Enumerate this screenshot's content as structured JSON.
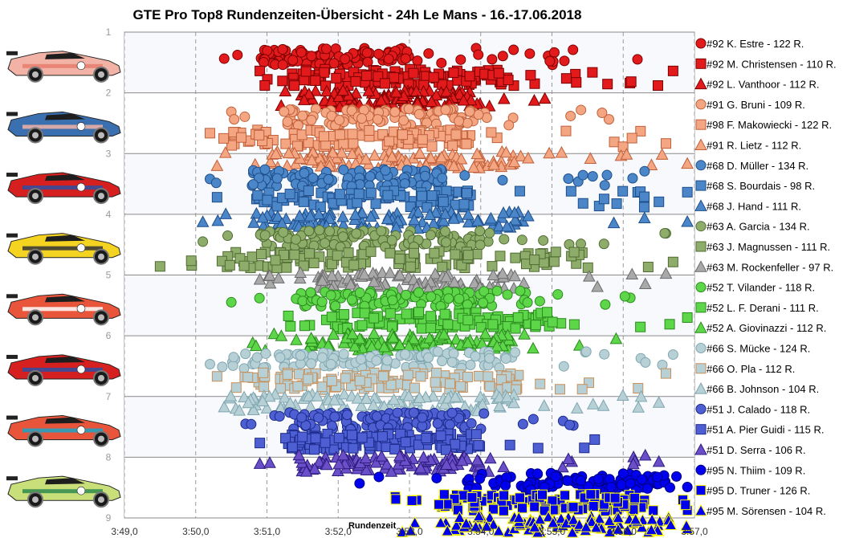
{
  "chart_data": {
    "type": "scatter",
    "title": "GTE Pro Top8 Rundenzeiten-Übersicht  - 24h Le Mans  - 16.-17.06.2018",
    "xlabel": "Rundenzeit",
    "ylabel": "",
    "x_unit": "seconds (lap time)",
    "xlim": [
      229,
      237
    ],
    "ylim": [
      1,
      9
    ],
    "x_ticks": [
      "3:49,0",
      "3:50,0",
      "3:51,0",
      "3:52,0",
      "3:53,0",
      "3:54,0",
      "3:55,0",
      "3:56,0",
      "3:57,0"
    ],
    "y_ticks": [
      "1",
      "2",
      "3",
      "4",
      "5",
      "6",
      "7",
      "8",
      "9"
    ],
    "grid": "x dashed vertical, y solid horizontal",
    "legend_position": "right",
    "cars": [
      {
        "number": "#92",
        "livery": "#f2b3a6",
        "accent": "#e77d6f"
      },
      {
        "number": "#91",
        "livery": "#3a6fb0",
        "accent": "#f2b3a6"
      },
      {
        "number": "#68",
        "livery": "#d62020",
        "accent": "#2b4fa3"
      },
      {
        "number": "#63",
        "livery": "#f5d321",
        "accent": "#333333"
      },
      {
        "number": "#52",
        "livery": "#e8553a",
        "accent": "#ffffff"
      },
      {
        "number": "#66",
        "livery": "#d62020",
        "accent": "#2b4fa3"
      },
      {
        "number": "#51",
        "livery": "#e8553a",
        "accent": "#1aa6c9"
      },
      {
        "number": "#95",
        "livery": "#c9e07a",
        "accent": "#2f8a4d"
      }
    ],
    "series": [
      {
        "name": "#92 K. Estre - 122 R.",
        "y": 1.4,
        "marker": "circle",
        "color": "#e31a1c",
        "stroke": "#7a0000",
        "xmin": 230.4,
        "xmax": 236.2,
        "core": [
          230.9,
          233.0
        ],
        "n": 122
      },
      {
        "name": "#92 M. Christensen - 110 R.",
        "y": 1.75,
        "marker": "square",
        "color": "#e31a1c",
        "stroke": "#7a0000",
        "xmin": 230.9,
        "xmax": 236.7,
        "core": [
          231.3,
          234.5
        ],
        "n": 110
      },
      {
        "name": "#92 L. Vanthoor - 112 R.",
        "y": 2.1,
        "marker": "triangle",
        "color": "#e31a1c",
        "stroke": "#7a0000",
        "xmin": 231.2,
        "xmax": 234.9,
        "core": [
          231.5,
          234.0
        ],
        "n": 112
      },
      {
        "name": "#91 G. Bruni - 109 R.",
        "y": 2.4,
        "marker": "circle",
        "color": "#f4a582",
        "stroke": "#c0603a",
        "xmin": 230.5,
        "xmax": 235.8,
        "core": [
          231.2,
          234.0
        ],
        "n": 109
      },
      {
        "name": "#98 F. Makowiecki - 122 R.",
        "y": 2.75,
        "marker": "square",
        "color": "#f4a582",
        "stroke": "#c0603a",
        "xmin": 230.2,
        "xmax": 236.6,
        "core": [
          230.5,
          233.9
        ],
        "n": 122
      },
      {
        "name": "#91 R. Lietz - 112 R.",
        "y": 3.1,
        "marker": "triangle",
        "color": "#f4a582",
        "stroke": "#c0603a",
        "xmin": 230.3,
        "xmax": 236.9,
        "core": [
          231.0,
          234.5
        ],
        "n": 112
      },
      {
        "name": "#68 D. Müller - 134 R.",
        "y": 3.4,
        "marker": "circle",
        "color": "#4a86c8",
        "stroke": "#1f4e8a",
        "xmin": 230.2,
        "xmax": 236.3,
        "core": [
          230.8,
          233.5
        ],
        "n": 134
      },
      {
        "name": "#68 S. Bourdais - 98 R.",
        "y": 3.75,
        "marker": "square",
        "color": "#4a86c8",
        "stroke": "#1f4e8a",
        "xmin": 230.3,
        "xmax": 236.9,
        "core": [
          230.8,
          233.9
        ],
        "n": 98
      },
      {
        "name": "#68 J. Hand - 111 R.",
        "y": 4.1,
        "marker": "triangle",
        "color": "#4a86c8",
        "stroke": "#1f4e8a",
        "xmin": 230.1,
        "xmax": 236.9,
        "core": [
          230.8,
          234.7
        ],
        "n": 111
      },
      {
        "name": "#63 A. Garcia - 134 R.",
        "y": 4.4,
        "marker": "circle",
        "color": "#8fad6a",
        "stroke": "#4f6b33",
        "xmin": 230.1,
        "xmax": 236.6,
        "core": [
          230.9,
          234.0
        ],
        "n": 134
      },
      {
        "name": "#63 J. Magnussen - 111 R.",
        "y": 4.75,
        "marker": "square",
        "color": "#8fad6a",
        "stroke": "#4f6b33",
        "xmin": 229.5,
        "xmax": 236.7,
        "core": [
          230.3,
          235.4
        ],
        "n": 111
      },
      {
        "name": "#63 M. Rockenfeller - 97 R.",
        "y": 5.1,
        "marker": "triangle",
        "color": "#a9a9a9",
        "stroke": "#6b6b6b",
        "xmin": 230.9,
        "xmax": 236.6,
        "core": [
          231.7,
          234.5
        ],
        "n": 97
      },
      {
        "name": "#52 T. Vilander - 118 R.",
        "y": 5.4,
        "marker": "circle",
        "color": "#5ed64a",
        "stroke": "#2a8a1d",
        "xmin": 230.5,
        "xmax": 236.1,
        "core": [
          231.4,
          234.2
        ],
        "n": 118
      },
      {
        "name": "#52 L. F. Derani - 111 R.",
        "y": 5.75,
        "marker": "square",
        "color": "#5ed64a",
        "stroke": "#2a8a1d",
        "xmin": 231.3,
        "xmax": 236.9,
        "core": [
          231.8,
          235.1
        ],
        "n": 111
      },
      {
        "name": "#52 A. Giovinazzi - 112 R.",
        "y": 6.1,
        "marker": "triangle",
        "color": "#5ed64a",
        "stroke": "#2a8a1d",
        "xmin": 230.8,
        "xmax": 235.9,
        "core": [
          231.5,
          234.5
        ],
        "n": 112
      },
      {
        "name": "#66 S. Mücke - 124 R.",
        "y": 6.4,
        "marker": "circle",
        "color": "#b6d0d6",
        "stroke": "#7fa6b0",
        "xmin": 230.2,
        "xmax": 236.7,
        "core": [
          230.5,
          234.5
        ],
        "n": 124
      },
      {
        "name": "#66 O. Pla - 112 R.",
        "y": 6.75,
        "marker": "square",
        "color": "#b6d0d6",
        "stroke": "#c8905a",
        "xmin": 230.3,
        "xmax": 236.6,
        "core": [
          230.5,
          234.6
        ],
        "n": 112
      },
      {
        "name": "#66 B. Johnson - 104 R.",
        "y": 7.1,
        "marker": "triangle",
        "color": "#b6d0d6",
        "stroke": "#7fa6b0",
        "xmin": 230.4,
        "xmax": 236.5,
        "core": [
          230.7,
          234.5
        ],
        "n": 104
      },
      {
        "name": "#51 J. Calado - 118 R.",
        "y": 7.4,
        "marker": "circle",
        "color": "#4e5fd4",
        "stroke": "#1c2a8a",
        "xmin": 230.7,
        "xmax": 235.3,
        "core": [
          231.3,
          233.9
        ],
        "n": 118
      },
      {
        "name": "#51 A. Pier Guidi - 115 R.",
        "y": 7.75,
        "marker": "square",
        "color": "#4e5fd4",
        "stroke": "#1c2a8a",
        "xmin": 230.9,
        "xmax": 235.6,
        "core": [
          231.3,
          234.0
        ],
        "n": 115
      },
      {
        "name": "#51 D. Serra - 106 R.",
        "y": 8.1,
        "marker": "triangle",
        "color": "#6a4fc8",
        "stroke": "#2e1c80",
        "xmin": 230.9,
        "xmax": 236.5,
        "core": [
          231.4,
          234.2
        ],
        "n": 106
      },
      {
        "name": "#95 N. Thiim - 109 R.",
        "y": 8.4,
        "marker": "circle",
        "color": "#0000ee",
        "stroke": "#000080",
        "xmin": 232.3,
        "xmax": 236.9,
        "core": [
          233.8,
          236.6
        ],
        "n": 109
      },
      {
        "name": "#95 D. Truner - 126 R.",
        "y": 8.75,
        "marker": "square",
        "color": "#0000ee",
        "stroke": "#ffff00",
        "xmin": 232.8,
        "xmax": 236.9,
        "core": [
          233.4,
          236.3
        ],
        "n": 126
      },
      {
        "name": "#95 M. Sörensen - 104 R.",
        "y": 9.1,
        "marker": "triangle",
        "color": "#0000ee",
        "stroke": "#ffff00",
        "xmin": 232.9,
        "xmax": 236.9,
        "core": [
          233.5,
          236.7
        ],
        "n": 104
      }
    ]
  }
}
